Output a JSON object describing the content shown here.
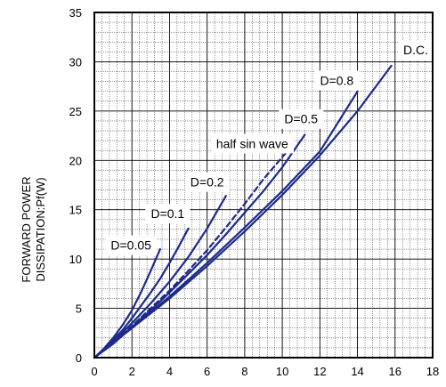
{
  "chart_data": {
    "type": "line",
    "title": "",
    "xlabel": "",
    "ylabel_lines": [
      "FORWARD POWER",
      "DISSIPATION:Pf(W)"
    ],
    "xlim": [
      0,
      18
    ],
    "ylim": [
      0,
      35
    ],
    "x_ticks": [
      0,
      2,
      4,
      6,
      8,
      10,
      12,
      14,
      16,
      18
    ],
    "y_ticks": [
      0,
      5,
      10,
      15,
      20,
      25,
      30,
      35
    ],
    "x_minor_step": 0.4,
    "y_minor_step": 1,
    "grid": true,
    "colors": {
      "series": "#1c2a8a",
      "grid": "#333333",
      "text": "#000000"
    },
    "series": [
      {
        "name": "D=0.05",
        "style": "solid",
        "x": [
          0,
          0.5,
          1,
          1.5,
          2,
          2.5,
          3,
          3.5
        ],
        "y": [
          0,
          0.9,
          2,
          3.3,
          4.8,
          6.7,
          8.8,
          11
        ]
      },
      {
        "name": "D=0.1",
        "style": "solid",
        "x": [
          0,
          0.5,
          1,
          1.5,
          2,
          2.5,
          3,
          3.5,
          4,
          4.5,
          5
        ],
        "y": [
          0,
          0.8,
          1.8,
          2.8,
          4,
          5.3,
          6.6,
          8,
          9.6,
          11.3,
          13.1
        ]
      },
      {
        "name": "D=0.2",
        "style": "solid",
        "x": [
          0,
          1,
          2,
          3,
          4,
          5,
          6,
          7
        ],
        "y": [
          0,
          1.6,
          3.5,
          5.5,
          7.7,
          10.2,
          13.1,
          16.4
        ]
      },
      {
        "name": "half sin wave",
        "style": "dashed",
        "x": [
          0,
          1,
          2,
          3,
          4,
          5,
          6,
          7,
          8,
          9,
          10.3
        ],
        "y": [
          0,
          1.5,
          3.2,
          5,
          6.8,
          8.8,
          10.9,
          13.2,
          15.6,
          18.1,
          21
        ]
      },
      {
        "name": "D=0.5",
        "style": "solid",
        "x": [
          0,
          1,
          2,
          3,
          4,
          5,
          6,
          7,
          8,
          9,
          10,
          11.2
        ],
        "y": [
          0,
          1.4,
          3.1,
          4.8,
          6.6,
          8.5,
          10.4,
          12.5,
          14.7,
          16.9,
          19.3,
          22.6
        ]
      },
      {
        "name": "D=0.8",
        "style": "solid",
        "x": [
          0,
          2,
          4,
          6,
          8,
          10,
          12,
          14
        ],
        "y": [
          0,
          3,
          6.2,
          9.6,
          13.2,
          16.9,
          20.9,
          27
        ]
      },
      {
        "name": "D.C.",
        "style": "solid",
        "x": [
          0,
          2,
          4,
          6,
          8,
          10,
          12,
          14,
          15.8
        ],
        "y": [
          0,
          3,
          6,
          9.3,
          12.8,
          16.5,
          20.5,
          25,
          29.6
        ]
      }
    ],
    "labels": [
      {
        "text": "D.C.",
        "x": 17.1,
        "y": 31.2
      },
      {
        "text": "D=0.8",
        "x": 12.9,
        "y": 28.1
      },
      {
        "text": "D=0.5",
        "x": 11.0,
        "y": 24.2
      },
      {
        "text": "half sin wave",
        "x": 8.4,
        "y": 21.7
      },
      {
        "text": "D=0.2",
        "x": 6.0,
        "y": 17.8
      },
      {
        "text": "D=0.1",
        "x": 3.9,
        "y": 14.6
      },
      {
        "text": "D=0.05",
        "x": 1.95,
        "y": 11.4
      }
    ]
  }
}
